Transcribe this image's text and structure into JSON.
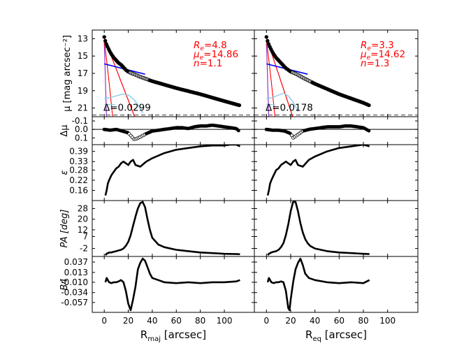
{
  "chart_data": {
    "type": "line",
    "columns": [
      {
        "xlabel_main": "R",
        "xlabel_sub": "maj",
        "xlabel_tail": " [arcsec]",
        "xlim": [
          -10,
          125
        ],
        "xticks": [
          0,
          20,
          40,
          60,
          80,
          100
        ],
        "xmax_data": 113,
        "fit": {
          "Re_label": "R",
          "Re_sub": "e",
          "Re": "=4.8",
          "mue_label": "μ",
          "mue_sub": "e",
          "mue": "=14.86",
          "n_label": "n",
          "n": "=1.1",
          "delta_label": "Δ",
          "delta": "=0.0299"
        },
        "profile": {
          "x": [
            0,
            1,
            2,
            3,
            4,
            6,
            8,
            10,
            12,
            14,
            16,
            18,
            20,
            22,
            25,
            30,
            40,
            60,
            80,
            100,
            113
          ],
          "mu": [
            12.8,
            13.3,
            13.7,
            14.0,
            14.3,
            14.8,
            15.2,
            15.5,
            15.8,
            16.0,
            16.3,
            16.6,
            16.8,
            16.95,
            17.1,
            17.4,
            17.9,
            18.7,
            19.4,
            20.2,
            20.7
          ]
        },
        "residual": {
          "x": [
            0,
            5,
            10,
            15,
            20,
            25,
            30,
            35,
            40,
            45,
            50,
            55,
            60,
            65,
            70,
            75,
            80,
            85,
            90,
            95,
            100,
            105,
            110,
            113
          ],
          "dmu": [
            0.0,
            0.01,
            0.0,
            0.02,
            0.04,
            0.12,
            0.09,
            0.05,
            0.02,
            0.01,
            0.0,
            -0.01,
            -0.02,
            -0.02,
            -0.01,
            -0.03,
            -0.04,
            -0.04,
            -0.05,
            -0.04,
            -0.03,
            -0.02,
            -0.01,
            0.03
          ]
        },
        "ellipticity": {
          "x": [
            1,
            2,
            3,
            4,
            6,
            8,
            10,
            12,
            14,
            16,
            18,
            20,
            22,
            24,
            26,
            30,
            35,
            40,
            50,
            60,
            70,
            80,
            90,
            100,
            105,
            110,
            113
          ],
          "e": [
            0.13,
            0.16,
            0.2,
            0.22,
            0.25,
            0.27,
            0.29,
            0.3,
            0.32,
            0.33,
            0.32,
            0.31,
            0.33,
            0.34,
            0.31,
            0.3,
            0.33,
            0.35,
            0.38,
            0.4,
            0.41,
            0.42,
            0.425,
            0.425,
            0.43,
            0.43,
            0.42
          ]
        },
        "pa": {
          "x": [
            1,
            2,
            4,
            6,
            8,
            10,
            12,
            14,
            16,
            18,
            20,
            22,
            24,
            26,
            28,
            30,
            32,
            34,
            36,
            38,
            40,
            45,
            50,
            60,
            70,
            80,
            90,
            100,
            110,
            113
          ],
          "deg": [
            -7,
            -6,
            -5,
            -5,
            -4.5,
            -4,
            -3.5,
            -3,
            -2,
            0,
            3,
            8,
            15,
            22,
            28,
            32,
            33,
            29,
            20,
            12,
            6,
            1,
            -1,
            -3,
            -4,
            -5,
            -5.5,
            -6,
            -6.2,
            -6.3
          ]
        },
        "b4": {
          "x": [
            1,
            2,
            3,
            4,
            6,
            8,
            10,
            12,
            14,
            16,
            18,
            20,
            22,
            24,
            26,
            28,
            30,
            32,
            34,
            36,
            38,
            40,
            45,
            50,
            60,
            70,
            80,
            90,
            100,
            110,
            113
          ],
          "b4": [
            -0.01,
            0.0,
            -0.005,
            -0.01,
            -0.012,
            -0.01,
            -0.01,
            -0.008,
            -0.005,
            -0.01,
            -0.03,
            -0.06,
            -0.075,
            -0.05,
            -0.02,
            0.02,
            0.035,
            0.045,
            0.04,
            0.025,
            0.01,
            0.0,
            -0.005,
            -0.01,
            -0.012,
            -0.01,
            -0.012,
            -0.01,
            -0.01,
            -0.008,
            -0.005
          ]
        }
      },
      {
        "xlabel_main": "R",
        "xlabel_sub": "eq",
        "xlabel_tail": " [arcsec]",
        "xlim": [
          -10,
          125
        ],
        "xticks": [
          0,
          20,
          40,
          60,
          80,
          100
        ],
        "xmax_data": 85,
        "fit": {
          "Re_label": "R",
          "Re_sub": "e",
          "Re": "=3.3",
          "mue_label": "μ",
          "mue_sub": "e",
          "mue": "=14.62",
          "n_label": "n",
          "n": "=1.3",
          "delta_label": "Δ",
          "delta": "=0.0178"
        },
        "profile": {
          "x": [
            0,
            1,
            2,
            3,
            4,
            6,
            8,
            10,
            12,
            14,
            16,
            18,
            20,
            25,
            30,
            40,
            50,
            60,
            70,
            80,
            85
          ],
          "mu": [
            12.8,
            13.3,
            13.7,
            14.0,
            14.3,
            14.8,
            15.2,
            15.5,
            15.8,
            16.1,
            16.4,
            16.6,
            16.8,
            17.1,
            17.5,
            18.2,
            18.8,
            19.4,
            19.9,
            20.4,
            20.7
          ]
        },
        "residual": {
          "x": [
            0,
            5,
            10,
            15,
            20,
            22,
            25,
            30,
            35,
            40,
            45,
            50,
            55,
            60,
            65,
            70,
            75,
            80,
            85
          ],
          "dmu": [
            0.0,
            0.01,
            0.01,
            0.02,
            0.05,
            0.1,
            0.07,
            0.02,
            0.0,
            -0.01,
            -0.02,
            -0.03,
            -0.03,
            -0.03,
            -0.04,
            -0.04,
            -0.03,
            -0.02,
            0.02
          ]
        },
        "ellipticity": {
          "x": [
            1,
            2,
            3,
            4,
            6,
            8,
            10,
            12,
            14,
            16,
            18,
            20,
            22,
            24,
            26,
            30,
            35,
            40,
            50,
            60,
            70,
            80,
            85
          ],
          "e": [
            0.13,
            0.16,
            0.2,
            0.22,
            0.25,
            0.28,
            0.29,
            0.31,
            0.32,
            0.33,
            0.32,
            0.31,
            0.33,
            0.34,
            0.31,
            0.3,
            0.34,
            0.36,
            0.39,
            0.41,
            0.42,
            0.43,
            0.42
          ]
        },
        "pa": {
          "x": [
            1,
            2,
            4,
            6,
            8,
            10,
            12,
            14,
            16,
            18,
            20,
            22,
            24,
            26,
            28,
            30,
            32,
            34,
            36,
            40,
            45,
            50,
            60,
            70,
            80,
            85
          ],
          "deg": [
            -7,
            -6,
            -5,
            -4.5,
            -4,
            -3,
            -1,
            2,
            8,
            16,
            26,
            33,
            33,
            26,
            17,
            10,
            5,
            2,
            0,
            -2,
            -3,
            -4,
            -5,
            -5.5,
            -6,
            -6.2
          ]
        },
        "b4": {
          "x": [
            1,
            2,
            3,
            4,
            6,
            8,
            10,
            12,
            14,
            16,
            17,
            18,
            19,
            20,
            22,
            24,
            26,
            28,
            30,
            32,
            35,
            40,
            50,
            60,
            70,
            80,
            85
          ],
          "b4": [
            -0.01,
            0.0,
            -0.005,
            -0.01,
            -0.012,
            -0.01,
            -0.01,
            -0.008,
            -0.01,
            -0.03,
            -0.05,
            -0.07,
            -0.075,
            -0.05,
            -0.01,
            0.02,
            0.035,
            0.045,
            0.03,
            0.01,
            0.0,
            -0.005,
            -0.01,
            -0.012,
            -0.01,
            -0.012,
            -0.005
          ]
        }
      }
    ],
    "panels": [
      {
        "key": "mu",
        "ylabel": "μ [mag arcsec⁻²]",
        "ylim": [
          22,
          12
        ],
        "yticks": [
          13,
          15,
          17,
          19,
          21
        ],
        "dashed_y": 21.8
      },
      {
        "key": "dmu",
        "ylabel": "Δμ",
        "ylim": [
          0.18,
          -0.15
        ],
        "yticks": [
          -0.1,
          0.0,
          0.1
        ],
        "ytick_labels": [
          "-0.1",
          "0.0",
          "0.1"
        ],
        "zero_line": true
      },
      {
        "key": "e",
        "ylabel": "ε",
        "ylim": [
          0.1,
          0.43
        ],
        "yticks": [
          0.16,
          0.22,
          0.28,
          0.33,
          0.39
        ],
        "ytick_labels": [
          "0.16",
          "0.22",
          "0.28",
          "0.33",
          "0.39"
        ]
      },
      {
        "key": "pa",
        "ylabel": "PA [deg]",
        "ylim": [
          -8,
          34
        ],
        "yticks": [
          -2,
          7,
          12,
          20,
          28
        ],
        "ytick_labels": [
          "-2",
          "7",
          "12",
          "20",
          "28"
        ]
      },
      {
        "key": "b4",
        "ylabel": "B4",
        "ylim": [
          -0.08,
          0.05
        ],
        "yticks": [
          -0.057,
          -0.034,
          -0.01,
          0.013,
          0.037
        ],
        "ytick_labels": [
          "-0.057",
          "-0.034",
          "-0.010",
          "0.013",
          "0.037"
        ]
      }
    ],
    "colors": {
      "data": "#000000",
      "total_fit": "#ff0000",
      "disk": "#0000ff",
      "bulge": "#ff0000",
      "ring": "#87ceeb",
      "psf": "#9932cc",
      "dashed": "#808080",
      "annotation": "#ff0000"
    }
  }
}
